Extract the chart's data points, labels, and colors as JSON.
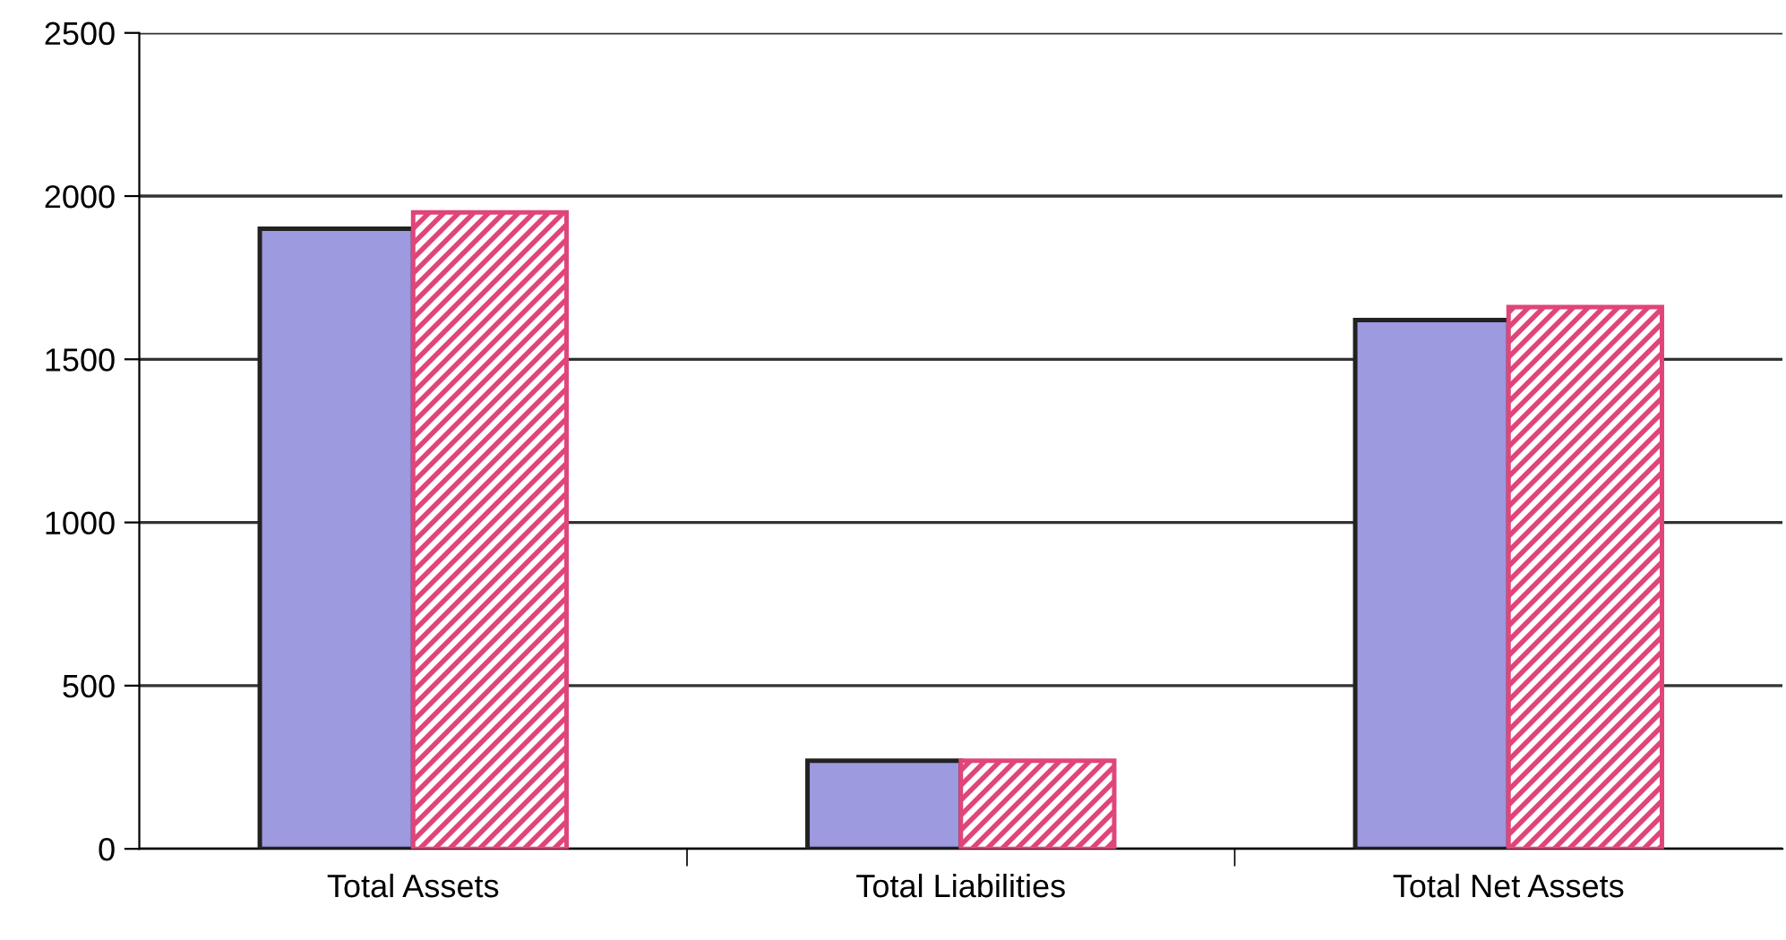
{
  "chart_data": {
    "type": "bar",
    "categories": [
      "Total Assets",
      "Total Liabilities",
      "Total Net Assets"
    ],
    "series": [
      {
        "color": "#9d9ae0",
        "values": [
          1900,
          270,
          1620
        ]
      },
      {
        "color": "#e0457a",
        "values": [
          1950,
          270,
          1660
        ]
      }
    ],
    "ylim": [
      0,
      2500
    ],
    "yticks": [
      0,
      500,
      1000,
      1500,
      2000,
      2500
    ],
    "grid": "y",
    "legend": false
  }
}
